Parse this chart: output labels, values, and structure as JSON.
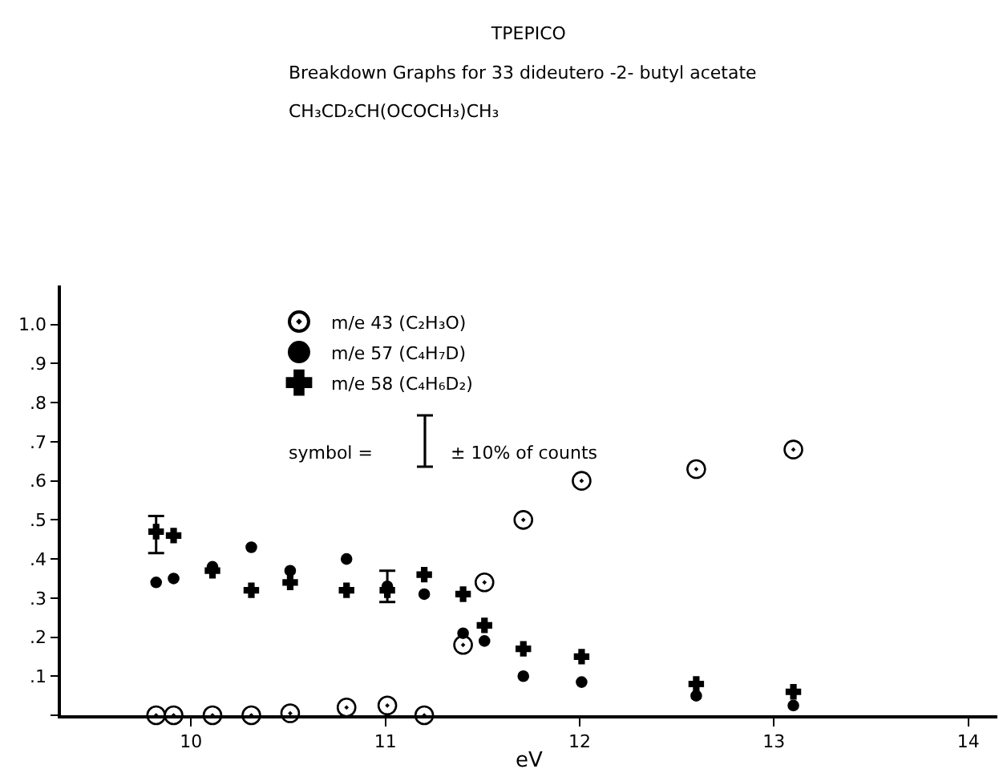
{
  "chart_data": {
    "type": "scatter",
    "title": "TPEPICO",
    "subtitle": "Breakdown Graphs for 33 dideutero -2- butyl acetate",
    "xlabel": "eV",
    "annotations": [
      "CH₃CD₂CH(OCOCH₃)CH₃",
      "symbol =",
      "± 10% of counts"
    ],
    "xlim": [
      9.33,
      14.15
    ],
    "ylim": [
      0,
      1.1
    ],
    "xticks": [
      10,
      11,
      12,
      13,
      14
    ],
    "yticks": [
      {
        "value": 0,
        "label": null
      },
      {
        "value": 0.1,
        "label": ".1"
      },
      {
        "value": 0.2,
        "label": ".2"
      },
      {
        "value": 0.3,
        "label": ".3"
      },
      {
        "value": 0.4,
        "label": ".4"
      },
      {
        "value": 0.5,
        "label": ".5"
      },
      {
        "value": 0.6,
        "label": ".6"
      },
      {
        "value": 0.7,
        "label": ".7"
      },
      {
        "value": 0.8,
        "label": ".8"
      },
      {
        "value": 0.9,
        "label": ".9"
      },
      {
        "value": 1,
        "label": "1.0"
      }
    ],
    "grid": false,
    "legend": "top left",
    "series": [
      {
        "name": "m/e 43 (C₂H₃O)",
        "color": "#000000",
        "marker": "circle",
        "x": [
          9.82,
          9.91,
          10.11,
          10.31,
          10.51,
          10.8,
          11.01,
          11.2,
          11.4,
          11.51,
          11.71,
          12.01,
          12.6,
          13.1
        ],
        "values": [
          0,
          0,
          0,
          0,
          0.005,
          0.02,
          0.025,
          0,
          0.18,
          0.34,
          0.5,
          0.6,
          0.63,
          0.68
        ]
      },
      {
        "name": "m/e 57 (C₄H₇D)",
        "color": "#000000",
        "marker": "dot",
        "x": [
          9.82,
          9.91,
          10.11,
          10.31,
          10.51,
          10.8,
          11.01,
          11.2,
          11.4,
          11.51,
          11.71,
          12.01,
          12.6,
          13.1
        ],
        "values": [
          0.34,
          0.35,
          0.38,
          0.43,
          0.37,
          0.4,
          0.33,
          0.31,
          0.21,
          0.19,
          0.1,
          0.085,
          0.05,
          0.025
        ],
        "errors": [
          null,
          null,
          null,
          null,
          null,
          null,
          [
            0.29,
            0.37
          ],
          null,
          null,
          null,
          null,
          null,
          null,
          null
        ]
      },
      {
        "name": "m/e 58 (C₄H₆D₂)",
        "color": "#000000",
        "marker": "cross",
        "x": [
          9.82,
          9.91,
          10.11,
          10.31,
          10.51,
          10.8,
          11.01,
          11.2,
          11.4,
          11.51,
          11.71,
          12.01,
          12.6,
          13.1
        ],
        "values": [
          0.47,
          0.46,
          0.37,
          0.32,
          0.34,
          0.32,
          0.32,
          0.36,
          0.31,
          0.23,
          0.17,
          0.15,
          0.08,
          0.06
        ],
        "errors": [
          [
            0.415,
            0.51
          ],
          null,
          null,
          null,
          null,
          null,
          null,
          null,
          null,
          null,
          null,
          null,
          null,
          null
        ]
      }
    ]
  }
}
